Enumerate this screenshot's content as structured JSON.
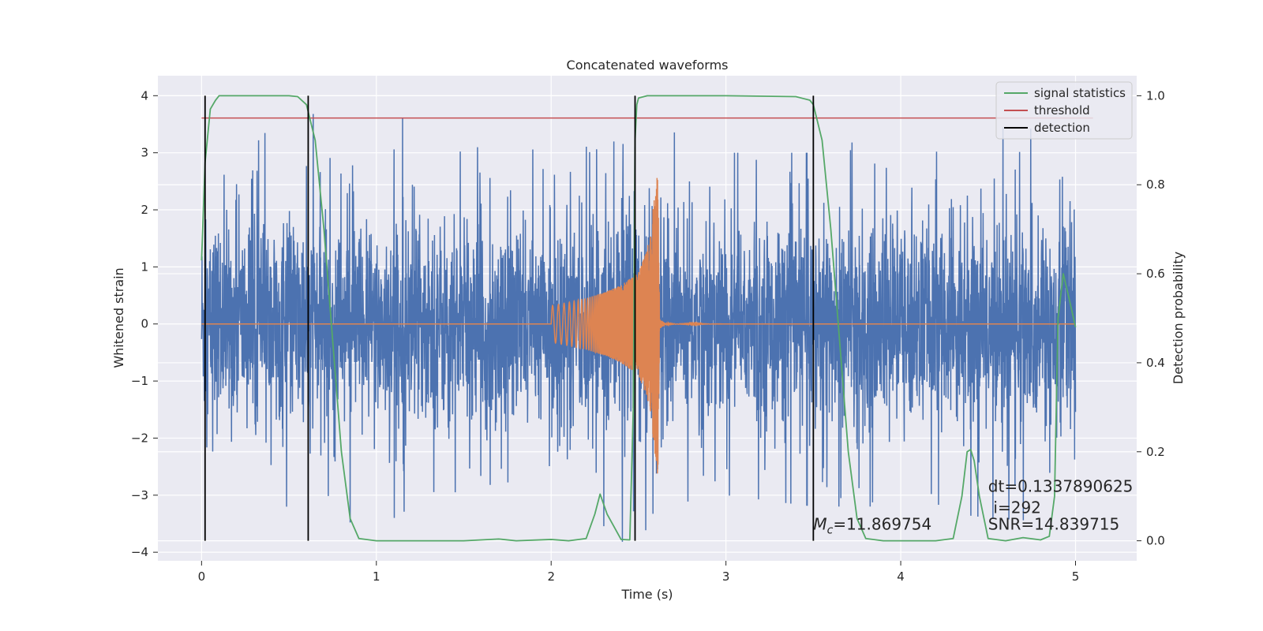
{
  "chart_data": {
    "type": "line",
    "title": "Concatenated waveforms",
    "xlabel": "Time (s)",
    "ylabel": "Whitened strain",
    "y2label": "Detection probability",
    "xlim": [
      -0.25,
      5.35
    ],
    "ylim": [
      -4.15,
      4.35
    ],
    "y2lim": [
      -0.045,
      1.045
    ],
    "x_ticks": [
      "0",
      "1",
      "2",
      "3",
      "4",
      "5"
    ],
    "y_ticks": [
      "−4",
      "−3",
      "−2",
      "−1",
      "0",
      "1",
      "2",
      "3",
      "4"
    ],
    "y2_ticks": [
      "0.0",
      "0.2",
      "0.4",
      "0.6",
      "0.8",
      "1.0"
    ],
    "grid": true,
    "legend_position": "top-right",
    "colors": {
      "strain": "#4c72b0",
      "template": "#dd8452",
      "signal_statistics": "#55a868",
      "threshold": "#c44e52",
      "detection": "#000000",
      "background": "#eaeaf2",
      "grid": "#ffffff"
    },
    "series": [
      {
        "name": "",
        "role": "whitened strain (noise + signal), amplitude envelope approx",
        "x": [
          0,
          0.5,
          1,
          1.5,
          2,
          2.5,
          3,
          3.5,
          4,
          4.5,
          5
        ],
        "values_max": [
          2.2,
          3.8,
          4.0,
          3.0,
          3.0,
          3.6,
          3.0,
          3.0,
          3.6,
          3.8,
          3.2
        ],
        "values_min": [
          -2.1,
          -3.2,
          -3.5,
          -2.8,
          -2.8,
          -3.7,
          -3.0,
          -3.2,
          -3.2,
          -3.4,
          -3.5
        ]
      },
      {
        "name": "",
        "role": "injected waveform",
        "x": [
          0,
          2.0,
          2.1,
          2.2,
          2.3,
          2.4,
          2.5,
          2.55,
          2.6,
          2.61,
          2.62,
          2.65,
          2.7,
          3.0,
          5.0
        ],
        "amplitude": [
          0,
          0.32,
          0.38,
          0.45,
          0.55,
          0.68,
          0.9,
          1.3,
          2.4,
          2.8,
          0.3,
          0.06,
          0.02,
          0,
          0
        ]
      },
      {
        "name": "signal statistics",
        "x": [
          0,
          0.02,
          0.05,
          0.08,
          0.1,
          0.2,
          0.5,
          0.55,
          0.6,
          0.65,
          0.7,
          0.75,
          0.8,
          0.85,
          0.9,
          1.0,
          1.5,
          1.7,
          1.8,
          2.0,
          2.1,
          2.2,
          2.25,
          2.28,
          2.32,
          2.4,
          2.45,
          2.47,
          2.48,
          2.49,
          2.5,
          2.55,
          2.7,
          3.0,
          3.4,
          3.48,
          3.5,
          3.55,
          3.6,
          3.65,
          3.7,
          3.75,
          3.8,
          3.9,
          4.0,
          4.2,
          4.3,
          4.35,
          4.38,
          4.4,
          4.42,
          4.45,
          4.5,
          4.6,
          4.7,
          4.8,
          4.85,
          4.88,
          4.9,
          4.93,
          4.96,
          5.0
        ],
        "values": [
          0.63,
          0.85,
          0.97,
          0.99,
          1.0,
          1.0,
          1.0,
          0.998,
          0.98,
          0.9,
          0.7,
          0.45,
          0.2,
          0.05,
          0.005,
          0.0,
          0.0,
          0.004,
          0.0,
          0.003,
          0.0,
          0.005,
          0.06,
          0.105,
          0.06,
          0.003,
          0.002,
          0.3,
          0.9,
          0.98,
          0.995,
          1.0,
          1.0,
          1.0,
          0.998,
          0.99,
          0.98,
          0.9,
          0.7,
          0.45,
          0.2,
          0.05,
          0.005,
          0.0,
          0.0,
          0.0,
          0.005,
          0.1,
          0.2,
          0.205,
          0.18,
          0.1,
          0.005,
          0.0,
          0.007,
          0.002,
          0.01,
          0.1,
          0.5,
          0.6,
          0.55,
          0.48
        ]
      },
      {
        "name": "threshold",
        "x": [
          0,
          5.1
        ],
        "values": [
          0.95,
          0.95
        ]
      },
      {
        "name": "detection",
        "x_positions": [
          0.02,
          0.61,
          2.48,
          3.5
        ],
        "ymin": 0.0,
        "ymax": 1.0
      }
    ],
    "annotations": [
      {
        "text": "M_c=11.869754",
        "x": 3.5,
        "y2": 0.025
      },
      {
        "text": "dt=0.1337890625",
        "x": 4.5,
        "y2": 0.11
      },
      {
        "text": "i=292",
        "x": 4.53,
        "y2": 0.062
      },
      {
        "text": "SNR=14.839715",
        "x": 4.5,
        "y2": 0.025
      }
    ]
  }
}
